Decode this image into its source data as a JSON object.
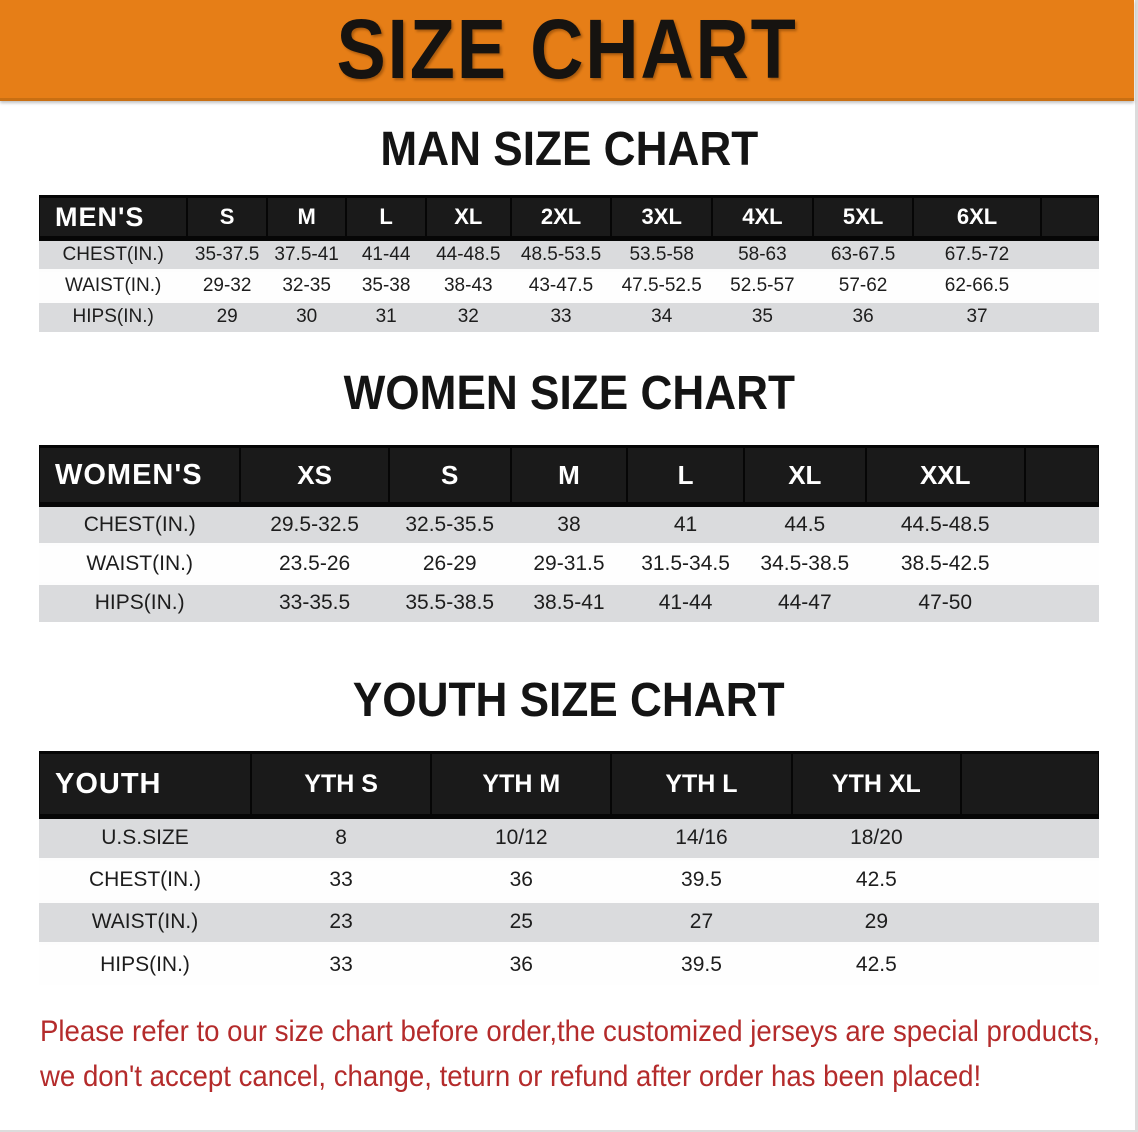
{
  "banner": {
    "title": "SIZE CHART",
    "bg_color": "#E67E17"
  },
  "sections": [
    {
      "heading": "MAN SIZE CHART",
      "table": {
        "label": "MEN'S",
        "columns": [
          "S",
          "M",
          "L",
          "XL",
          "2XL",
          "3XL",
          "4XL",
          "5XL",
          "6XL"
        ],
        "rows": [
          {
            "label": "CHEST(IN.)",
            "values": [
              "35-37.5",
              "37.5-41",
              "41-44",
              "44-48.5",
              "48.5-53.5",
              "53.5-58",
              "58-63",
              "63-67.5",
              "67.5-72"
            ]
          },
          {
            "label": "WAIST(IN.)",
            "values": [
              "29-32",
              "32-35",
              "35-38",
              "38-43",
              "43-47.5",
              "47.5-52.5",
              "52.5-57",
              "57-62",
              "62-66.5"
            ]
          },
          {
            "label": "HIPS(IN.)",
            "values": [
              "29",
              "30",
              "31",
              "32",
              "33",
              "34",
              "35",
              "36",
              "37"
            ]
          }
        ]
      }
    },
    {
      "heading": "WOMEN SIZE CHART",
      "table": {
        "label": "WOMEN'S",
        "columns": [
          "XS",
          "S",
          "M",
          "L",
          "XL",
          "XXL"
        ],
        "rows": [
          {
            "label": "CHEST(IN.)",
            "values": [
              "29.5-32.5",
              "32.5-35.5",
              "38",
              "41",
              "44.5",
              "44.5-48.5"
            ]
          },
          {
            "label": "WAIST(IN.)",
            "values": [
              "23.5-26",
              "26-29",
              "29-31.5",
              "31.5-34.5",
              "34.5-38.5",
              "38.5-42.5"
            ]
          },
          {
            "label": "HIPS(IN.)",
            "values": [
              "33-35.5",
              "35.5-38.5",
              "38.5-41",
              "41-44",
              "44-47",
              "47-50"
            ]
          }
        ]
      }
    },
    {
      "heading": "YOUTH SIZE CHART",
      "table": {
        "label": "YOUTH",
        "columns": [
          "YTH S",
          "YTH M",
          "YTH L",
          "YTH XL"
        ],
        "rows": [
          {
            "label": "U.S.SIZE",
            "values": [
              "8",
              "10/12",
              "14/16",
              "18/20"
            ]
          },
          {
            "label": "CHEST(IN.)",
            "values": [
              "33",
              "36",
              "39.5",
              "42.5"
            ]
          },
          {
            "label": "WAIST(IN.)",
            "values": [
              "23",
              "25",
              "27",
              "29"
            ]
          },
          {
            "label": "HIPS(IN.)",
            "values": [
              "33",
              "36",
              "39.5",
              "42.5"
            ]
          }
        ]
      }
    }
  ],
  "footer": {
    "line1": "Please refer to our size chart before order,the customized jerseys are special products,",
    "line2": "we don't accept cancel, change, teturn or refund after order has been placed!",
    "color": "#B42B2B"
  }
}
